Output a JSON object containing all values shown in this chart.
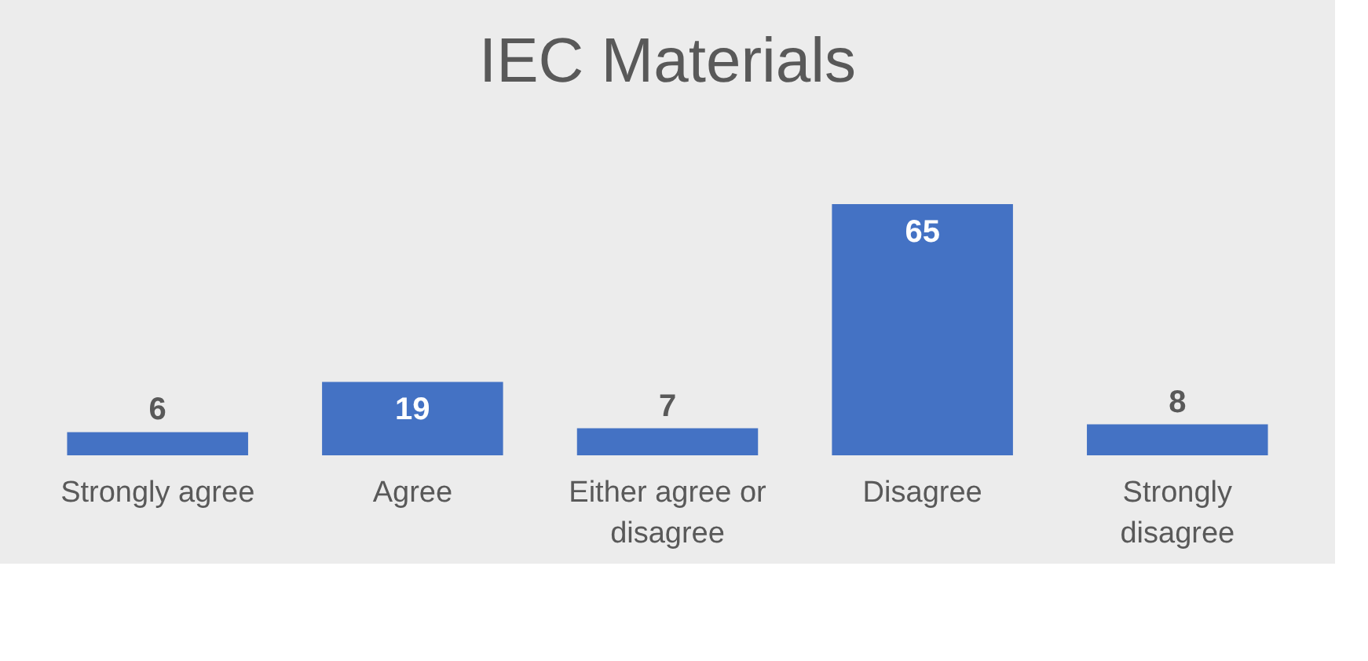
{
  "chart_data": {
    "type": "bar",
    "title": "IEC Materials",
    "categories": [
      "Strongly agree",
      "Agree",
      "Either agree or disagree",
      "Disagree",
      "Strongly disagree"
    ],
    "values": [
      6,
      19,
      7,
      65,
      8
    ],
    "color": "#4472c4",
    "data_labels": true,
    "grid": false
  }
}
